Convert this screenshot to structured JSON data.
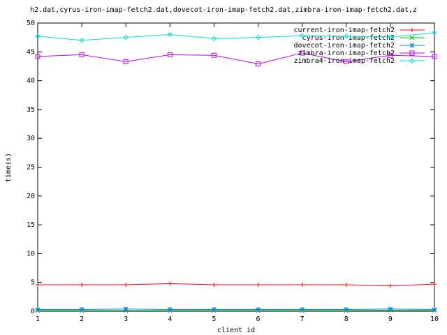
{
  "chart_data": {
    "type": "line",
    "title": "h2.dat,cyrus-iron-imap-fetch2.dat,dovecot-iron-imap-fetch2.dat,zimbra-iron-imap-fetch2.dat,z",
    "x_label": "client id",
    "y_label": "time(s)",
    "x": [
      1,
      2,
      3,
      4,
      5,
      6,
      7,
      8,
      9,
      10
    ],
    "xlim": [
      1,
      10
    ],
    "xticks": [
      1,
      2,
      3,
      4,
      5,
      6,
      7,
      8,
      9,
      10
    ],
    "ylim": [
      0,
      50
    ],
    "yticks": [
      0,
      5,
      10,
      15,
      20,
      25,
      30,
      35,
      40,
      45,
      50
    ],
    "legend": "top-right",
    "series": [
      {
        "name": "current-iron-imap-fetch2",
        "color": "#ff0000",
        "marker": "plus",
        "values": [
          4.6,
          4.6,
          4.6,
          4.8,
          4.6,
          4.6,
          4.6,
          4.6,
          4.4,
          4.7
        ]
      },
      {
        "name": "cyrus-iron-imap-fetch2",
        "color": "#00c000",
        "marker": "cross",
        "values": [
          0.1,
          0.1,
          0.1,
          0.1,
          0.1,
          0.1,
          0.1,
          0.1,
          0.2,
          0.1
        ]
      },
      {
        "name": "dovecot-iron-imap-fetch2",
        "color": "#0080ff",
        "marker": "star",
        "values": [
          0.3,
          0.3,
          0.4,
          0.3,
          0.3,
          0.3,
          0.3,
          0.3,
          0.4,
          0.3
        ]
      },
      {
        "name": "zimbra-iron-imap-fetch2",
        "color": "#c000ff",
        "marker": "square",
        "values": [
          44.2,
          44.5,
          43.3,
          44.5,
          44.4,
          42.9,
          44.8,
          43.3,
          44.4,
          44.2
        ]
      },
      {
        "name": "zimbra4-iron-imap-fetch2",
        "color": "#00e0e0",
        "marker": "diamond",
        "values": [
          47.7,
          47.0,
          47.5,
          48.0,
          47.3,
          47.5,
          47.8,
          47.7,
          47.6,
          48.3
        ]
      }
    ]
  }
}
